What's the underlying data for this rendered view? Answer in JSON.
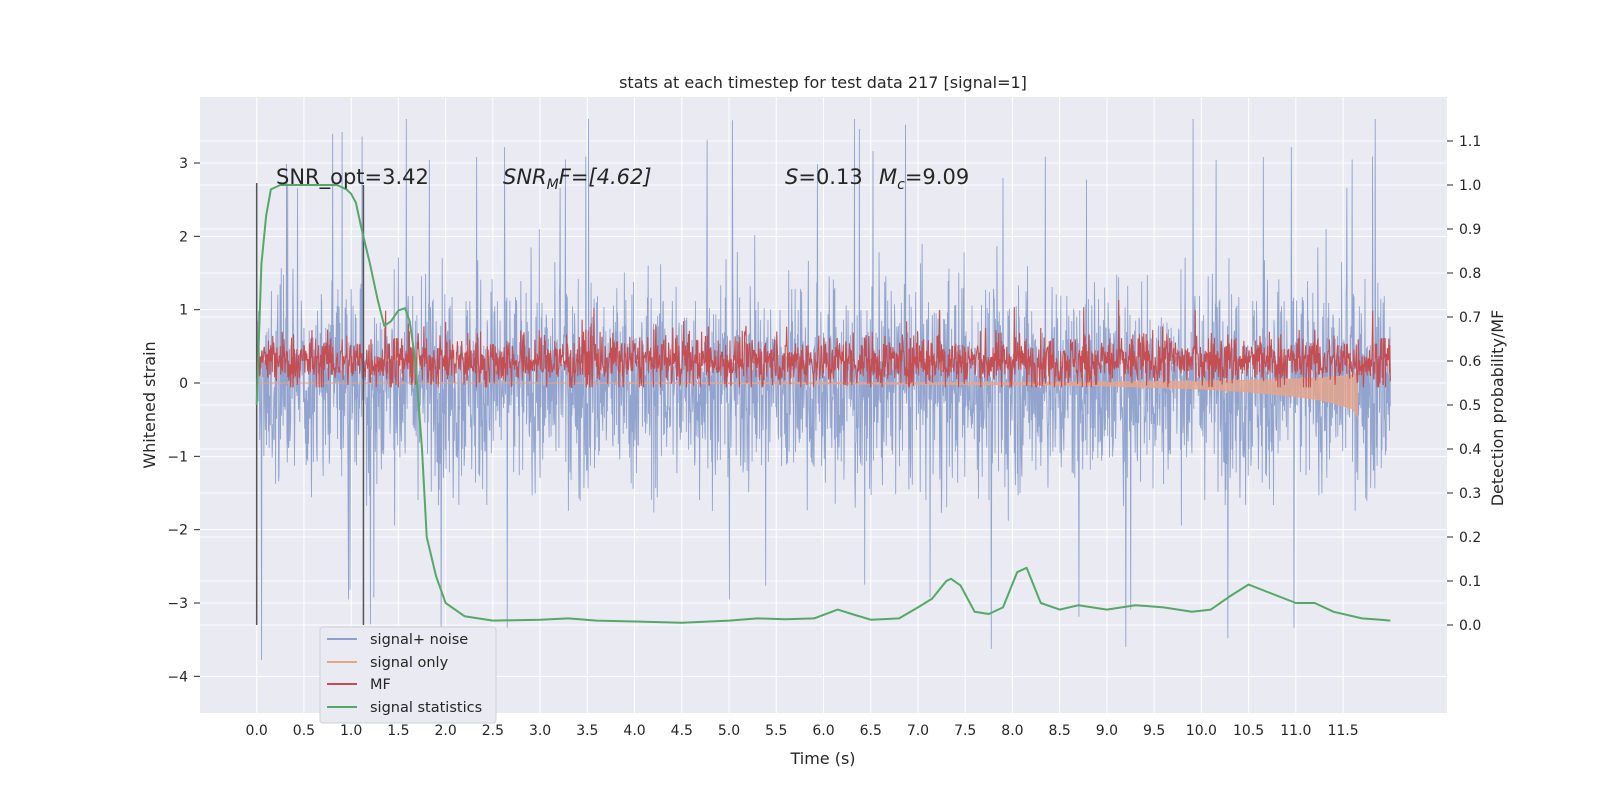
{
  "chart_data": {
    "type": "line",
    "title": "stats at each timestep for test data 217 [signal=1]",
    "xlabel": "Time (s)",
    "ylabel": "Whitened strain",
    "y2label": "Detection probability/MF",
    "xlim": [
      -0.6,
      12.6
    ],
    "ylim": [
      -4.5,
      3.9
    ],
    "y2lim": [
      -0.2,
      1.2
    ],
    "x_ticks": [
      0.0,
      0.5,
      1.0,
      1.5,
      2.0,
      2.5,
      3.0,
      3.5,
      4.0,
      4.5,
      5.0,
      5.5,
      6.0,
      6.5,
      7.0,
      7.5,
      8.0,
      8.5,
      9.0,
      9.5,
      10.0,
      10.5,
      11.0,
      11.5
    ],
    "x_tick_labels": [
      "0.0",
      "0.5",
      "1.0",
      "1.5",
      "2.0",
      "2.5",
      "3.0",
      "3.5",
      "4.0",
      "4.5",
      "5.0",
      "5.5",
      "6.0",
      "6.5",
      "7.0",
      "7.5",
      "8.0",
      "8.5",
      "9.0",
      "9.5",
      "10.0",
      "10.5",
      "11.0",
      "11.5"
    ],
    "y_ticks": [
      -4,
      -3,
      -2,
      -1,
      0,
      1,
      2,
      3
    ],
    "y_tick_labels": [
      "−4",
      "−3",
      "−2",
      "−1",
      "0",
      "1",
      "2",
      "3"
    ],
    "y2_ticks": [
      0.0,
      0.1,
      0.2,
      0.3,
      0.4,
      0.5,
      0.6,
      0.7,
      0.8,
      0.9,
      1.0,
      1.1
    ],
    "y2_tick_labels": [
      "0.0",
      "0.1",
      "0.2",
      "0.3",
      "0.4",
      "0.5",
      "0.6",
      "0.7",
      "0.8",
      "0.9",
      "1.0",
      "1.1"
    ],
    "grid": true,
    "legend_position": "lower-left",
    "annotations": {
      "snr_opt": "SNR_opt=3.42",
      "snr_mf_sym": "SNR",
      "snr_mf_sub": "M",
      "snr_mf_rest": "F=[4.62]",
      "s_sym": "S",
      "s_rest": "=0.13",
      "mc_sym": "M",
      "mc_sub": "c",
      "mc_rest": "=9.09"
    },
    "markers_x": [
      0.0,
      1.13
    ],
    "series": [
      {
        "name": "signal+ noise",
        "color": "#8da0cb",
        "x_range": [
          0.0,
          12.0
        ],
        "envelope": {
          "typical_half_range": 1.3,
          "peak_max": 3.6,
          "peak_min": -4.0
        }
      },
      {
        "name": "signal only",
        "color": "#e8a48b",
        "points": [
          [
            0.0,
            0.0
          ],
          [
            3.0,
            0.0
          ],
          [
            6.0,
            -0.01
          ],
          [
            8.0,
            -0.02
          ],
          [
            9.0,
            -0.04
          ],
          [
            10.0,
            -0.08
          ],
          [
            10.5,
            -0.12
          ],
          [
            11.0,
            -0.18
          ],
          [
            11.3,
            -0.24
          ],
          [
            11.6,
            -0.35
          ],
          [
            11.65,
            -0.45
          ]
        ]
      },
      {
        "name": "MF",
        "color": "#c44e52",
        "base": 0.6,
        "typical_amplitude": 0.07,
        "peak_max": 0.745
      },
      {
        "name": "signal statistics",
        "color": "#55a868",
        "points": [
          [
            0.0,
            0.5
          ],
          [
            0.05,
            0.82
          ],
          [
            0.1,
            0.93
          ],
          [
            0.15,
            0.99
          ],
          [
            0.25,
            1.0
          ],
          [
            0.5,
            1.0
          ],
          [
            0.7,
            1.0
          ],
          [
            0.85,
            1.0
          ],
          [
            0.95,
            0.99
          ],
          [
            1.0,
            0.98
          ],
          [
            1.05,
            0.96
          ],
          [
            1.1,
            0.91
          ],
          [
            1.2,
            0.82
          ],
          [
            1.28,
            0.74
          ],
          [
            1.35,
            0.68
          ],
          [
            1.42,
            0.69
          ],
          [
            1.5,
            0.715
          ],
          [
            1.57,
            0.72
          ],
          [
            1.62,
            0.69
          ],
          [
            1.68,
            0.6
          ],
          [
            1.75,
            0.4
          ],
          [
            1.8,
            0.2
          ],
          [
            1.9,
            0.11
          ],
          [
            2.0,
            0.05
          ],
          [
            2.2,
            0.02
          ],
          [
            2.5,
            0.01
          ],
          [
            3.0,
            0.012
          ],
          [
            3.3,
            0.015
          ],
          [
            3.6,
            0.01
          ],
          [
            4.0,
            0.008
          ],
          [
            4.5,
            0.005
          ],
          [
            5.0,
            0.01
          ],
          [
            5.3,
            0.015
          ],
          [
            5.6,
            0.013
          ],
          [
            5.9,
            0.015
          ],
          [
            6.15,
            0.035
          ],
          [
            6.3,
            0.025
          ],
          [
            6.5,
            0.012
          ],
          [
            6.8,
            0.015
          ],
          [
            7.0,
            0.04
          ],
          [
            7.15,
            0.06
          ],
          [
            7.3,
            0.1
          ],
          [
            7.35,
            0.105
          ],
          [
            7.45,
            0.09
          ],
          [
            7.6,
            0.03
          ],
          [
            7.75,
            0.025
          ],
          [
            7.9,
            0.04
          ],
          [
            8.05,
            0.12
          ],
          [
            8.15,
            0.13
          ],
          [
            8.3,
            0.05
          ],
          [
            8.5,
            0.035
          ],
          [
            8.7,
            0.045
          ],
          [
            9.0,
            0.035
          ],
          [
            9.3,
            0.045
          ],
          [
            9.6,
            0.04
          ],
          [
            9.9,
            0.03
          ],
          [
            10.1,
            0.035
          ],
          [
            10.3,
            0.065
          ],
          [
            10.5,
            0.092
          ],
          [
            10.7,
            0.075
          ],
          [
            11.0,
            0.05
          ],
          [
            11.2,
            0.05
          ],
          [
            11.4,
            0.03
          ],
          [
            11.7,
            0.015
          ],
          [
            11.9,
            0.012
          ],
          [
            12.0,
            0.01
          ]
        ]
      }
    ]
  },
  "legend": {
    "items": [
      {
        "label": "signal+ noise",
        "color": "#8da0cb"
      },
      {
        "label": "signal only",
        "color": "#e8a48b"
      },
      {
        "label": "MF",
        "color": "#c44e52"
      },
      {
        "label": "signal statistics",
        "color": "#55a868"
      }
    ]
  },
  "colors": {
    "plot_background": "#eaeaf2",
    "grid": "#ffffff",
    "marker_line": "#555555"
  }
}
